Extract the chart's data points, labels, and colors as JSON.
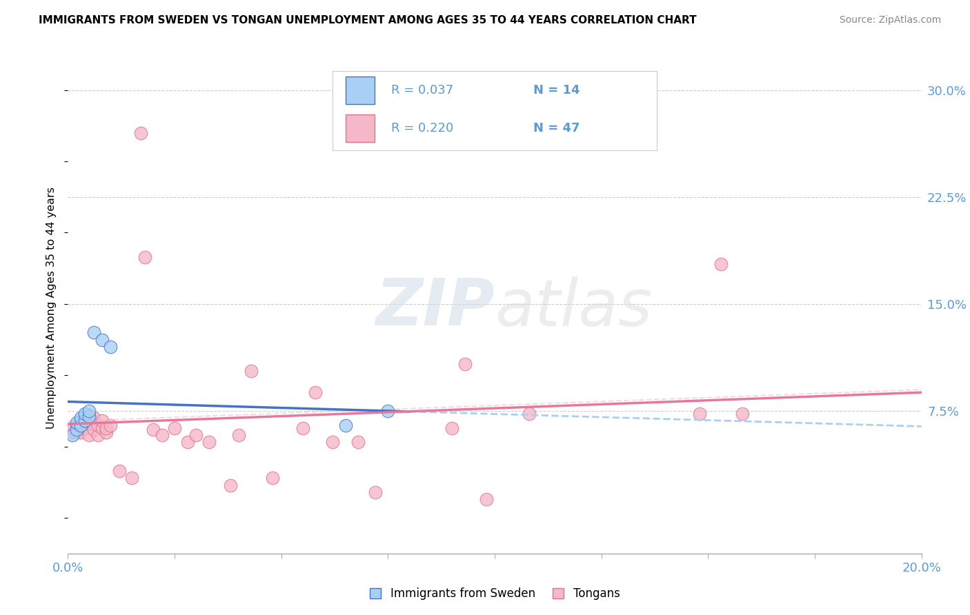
{
  "title": "IMMIGRANTS FROM SWEDEN VS TONGAN UNEMPLOYMENT AMONG AGES 35 TO 44 YEARS CORRELATION CHART",
  "source": "Source: ZipAtlas.com",
  "ylabel": "Unemployment Among Ages 35 to 44 years",
  "xlim": [
    0.0,
    0.2
  ],
  "ylim": [
    -0.025,
    0.32
  ],
  "yticks": [
    0.075,
    0.15,
    0.225,
    0.3
  ],
  "ytick_labels": [
    "7.5%",
    "15.0%",
    "22.5%",
    "30.0%"
  ],
  "xticks": [
    0.0,
    0.025,
    0.05,
    0.075,
    0.1,
    0.125,
    0.15,
    0.175,
    0.2
  ],
  "xtick_labels": [
    "0.0%",
    "",
    "",
    "",
    "",
    "",
    "",
    "",
    "20.0%"
  ],
  "watermark_zip": "ZIP",
  "watermark_atlas": "atlas",
  "legend_r1": "R = 0.037",
  "legend_n1": "N = 14",
  "legend_r2": "R = 0.220",
  "legend_n2": "N = 47",
  "color_sweden": "#a8d0f5",
  "color_tonga": "#f5b8c8",
  "color_sweden_edge": "#4472c4",
  "color_tonga_edge": "#e07090",
  "color_sweden_line": "#4472c4",
  "color_tonga_line": "#e8789a",
  "color_sweden_dash": "#a8d0f5",
  "color_axis_text": "#5b9bd5",
  "sweden_x": [
    0.001,
    0.002,
    0.002,
    0.003,
    0.003,
    0.004,
    0.004,
    0.005,
    0.005,
    0.006,
    0.008,
    0.01,
    0.065,
    0.075
  ],
  "sweden_y": [
    0.058,
    0.062,
    0.067,
    0.065,
    0.07,
    0.068,
    0.073,
    0.071,
    0.075,
    0.13,
    0.125,
    0.12,
    0.065,
    0.075
  ],
  "tonga_x": [
    0.001,
    0.001,
    0.002,
    0.002,
    0.003,
    0.003,
    0.003,
    0.004,
    0.004,
    0.005,
    0.005,
    0.005,
    0.006,
    0.006,
    0.007,
    0.007,
    0.008,
    0.008,
    0.009,
    0.009,
    0.01,
    0.012,
    0.015,
    0.017,
    0.018,
    0.02,
    0.022,
    0.025,
    0.028,
    0.03,
    0.033,
    0.038,
    0.04,
    0.043,
    0.048,
    0.055,
    0.058,
    0.062,
    0.068,
    0.072,
    0.09,
    0.093,
    0.098,
    0.108,
    0.148,
    0.153,
    0.158
  ],
  "tonga_y": [
    0.06,
    0.063,
    0.06,
    0.065,
    0.06,
    0.065,
    0.068,
    0.063,
    0.07,
    0.058,
    0.068,
    0.072,
    0.062,
    0.07,
    0.058,
    0.065,
    0.063,
    0.068,
    0.06,
    0.063,
    0.065,
    0.033,
    0.028,
    0.27,
    0.183,
    0.062,
    0.058,
    0.063,
    0.053,
    0.058,
    0.053,
    0.023,
    0.058,
    0.103,
    0.028,
    0.063,
    0.088,
    0.053,
    0.053,
    0.018,
    0.063,
    0.108,
    0.013,
    0.073,
    0.073,
    0.178,
    0.073
  ],
  "sweden_line_solid_end": 0.08,
  "tonga_line_x0": 0.0,
  "tonga_line_x1": 0.2
}
